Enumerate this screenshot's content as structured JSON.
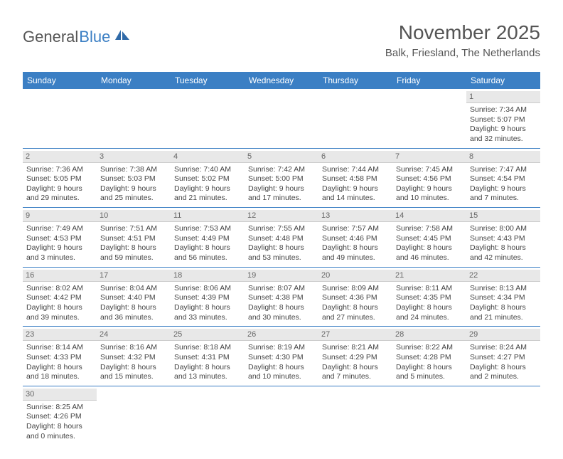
{
  "brand": {
    "general": "General",
    "blue": "Blue"
  },
  "title": "November 2025",
  "location": "Balk, Friesland, The Netherlands",
  "colors": {
    "header_bg": "#3b7fc4",
    "header_text": "#ffffff",
    "daynum_bg": "#e8e8e8",
    "row_border": "#3b7fc4",
    "logo_blue": "#3b7fc4",
    "body_text": "#444"
  },
  "weekdays": [
    "Sunday",
    "Monday",
    "Tuesday",
    "Wednesday",
    "Thursday",
    "Friday",
    "Saturday"
  ],
  "weeks": [
    [
      {
        "empty": true
      },
      {
        "empty": true
      },
      {
        "empty": true
      },
      {
        "empty": true
      },
      {
        "empty": true
      },
      {
        "empty": true
      },
      {
        "day": "1",
        "sunrise": "Sunrise: 7:34 AM",
        "sunset": "Sunset: 5:07 PM",
        "daylight": "Daylight: 9 hours and 32 minutes."
      }
    ],
    [
      {
        "day": "2",
        "sunrise": "Sunrise: 7:36 AM",
        "sunset": "Sunset: 5:05 PM",
        "daylight": "Daylight: 9 hours and 29 minutes."
      },
      {
        "day": "3",
        "sunrise": "Sunrise: 7:38 AM",
        "sunset": "Sunset: 5:03 PM",
        "daylight": "Daylight: 9 hours and 25 minutes."
      },
      {
        "day": "4",
        "sunrise": "Sunrise: 7:40 AM",
        "sunset": "Sunset: 5:02 PM",
        "daylight": "Daylight: 9 hours and 21 minutes."
      },
      {
        "day": "5",
        "sunrise": "Sunrise: 7:42 AM",
        "sunset": "Sunset: 5:00 PM",
        "daylight": "Daylight: 9 hours and 17 minutes."
      },
      {
        "day": "6",
        "sunrise": "Sunrise: 7:44 AM",
        "sunset": "Sunset: 4:58 PM",
        "daylight": "Daylight: 9 hours and 14 minutes."
      },
      {
        "day": "7",
        "sunrise": "Sunrise: 7:45 AM",
        "sunset": "Sunset: 4:56 PM",
        "daylight": "Daylight: 9 hours and 10 minutes."
      },
      {
        "day": "8",
        "sunrise": "Sunrise: 7:47 AM",
        "sunset": "Sunset: 4:54 PM",
        "daylight": "Daylight: 9 hours and 7 minutes."
      }
    ],
    [
      {
        "day": "9",
        "sunrise": "Sunrise: 7:49 AM",
        "sunset": "Sunset: 4:53 PM",
        "daylight": "Daylight: 9 hours and 3 minutes."
      },
      {
        "day": "10",
        "sunrise": "Sunrise: 7:51 AM",
        "sunset": "Sunset: 4:51 PM",
        "daylight": "Daylight: 8 hours and 59 minutes."
      },
      {
        "day": "11",
        "sunrise": "Sunrise: 7:53 AM",
        "sunset": "Sunset: 4:49 PM",
        "daylight": "Daylight: 8 hours and 56 minutes."
      },
      {
        "day": "12",
        "sunrise": "Sunrise: 7:55 AM",
        "sunset": "Sunset: 4:48 PM",
        "daylight": "Daylight: 8 hours and 53 minutes."
      },
      {
        "day": "13",
        "sunrise": "Sunrise: 7:57 AM",
        "sunset": "Sunset: 4:46 PM",
        "daylight": "Daylight: 8 hours and 49 minutes."
      },
      {
        "day": "14",
        "sunrise": "Sunrise: 7:58 AM",
        "sunset": "Sunset: 4:45 PM",
        "daylight": "Daylight: 8 hours and 46 minutes."
      },
      {
        "day": "15",
        "sunrise": "Sunrise: 8:00 AM",
        "sunset": "Sunset: 4:43 PM",
        "daylight": "Daylight: 8 hours and 42 minutes."
      }
    ],
    [
      {
        "day": "16",
        "sunrise": "Sunrise: 8:02 AM",
        "sunset": "Sunset: 4:42 PM",
        "daylight": "Daylight: 8 hours and 39 minutes."
      },
      {
        "day": "17",
        "sunrise": "Sunrise: 8:04 AM",
        "sunset": "Sunset: 4:40 PM",
        "daylight": "Daylight: 8 hours and 36 minutes."
      },
      {
        "day": "18",
        "sunrise": "Sunrise: 8:06 AM",
        "sunset": "Sunset: 4:39 PM",
        "daylight": "Daylight: 8 hours and 33 minutes."
      },
      {
        "day": "19",
        "sunrise": "Sunrise: 8:07 AM",
        "sunset": "Sunset: 4:38 PM",
        "daylight": "Daylight: 8 hours and 30 minutes."
      },
      {
        "day": "20",
        "sunrise": "Sunrise: 8:09 AM",
        "sunset": "Sunset: 4:36 PM",
        "daylight": "Daylight: 8 hours and 27 minutes."
      },
      {
        "day": "21",
        "sunrise": "Sunrise: 8:11 AM",
        "sunset": "Sunset: 4:35 PM",
        "daylight": "Daylight: 8 hours and 24 minutes."
      },
      {
        "day": "22",
        "sunrise": "Sunrise: 8:13 AM",
        "sunset": "Sunset: 4:34 PM",
        "daylight": "Daylight: 8 hours and 21 minutes."
      }
    ],
    [
      {
        "day": "23",
        "sunrise": "Sunrise: 8:14 AM",
        "sunset": "Sunset: 4:33 PM",
        "daylight": "Daylight: 8 hours and 18 minutes."
      },
      {
        "day": "24",
        "sunrise": "Sunrise: 8:16 AM",
        "sunset": "Sunset: 4:32 PM",
        "daylight": "Daylight: 8 hours and 15 minutes."
      },
      {
        "day": "25",
        "sunrise": "Sunrise: 8:18 AM",
        "sunset": "Sunset: 4:31 PM",
        "daylight": "Daylight: 8 hours and 13 minutes."
      },
      {
        "day": "26",
        "sunrise": "Sunrise: 8:19 AM",
        "sunset": "Sunset: 4:30 PM",
        "daylight": "Daylight: 8 hours and 10 minutes."
      },
      {
        "day": "27",
        "sunrise": "Sunrise: 8:21 AM",
        "sunset": "Sunset: 4:29 PM",
        "daylight": "Daylight: 8 hours and 7 minutes."
      },
      {
        "day": "28",
        "sunrise": "Sunrise: 8:22 AM",
        "sunset": "Sunset: 4:28 PM",
        "daylight": "Daylight: 8 hours and 5 minutes."
      },
      {
        "day": "29",
        "sunrise": "Sunrise: 8:24 AM",
        "sunset": "Sunset: 4:27 PM",
        "daylight": "Daylight: 8 hours and 2 minutes."
      }
    ],
    [
      {
        "day": "30",
        "sunrise": "Sunrise: 8:25 AM",
        "sunset": "Sunset: 4:26 PM",
        "daylight": "Daylight: 8 hours and 0 minutes."
      },
      {
        "empty": true
      },
      {
        "empty": true
      },
      {
        "empty": true
      },
      {
        "empty": true
      },
      {
        "empty": true
      },
      {
        "empty": true
      }
    ]
  ]
}
